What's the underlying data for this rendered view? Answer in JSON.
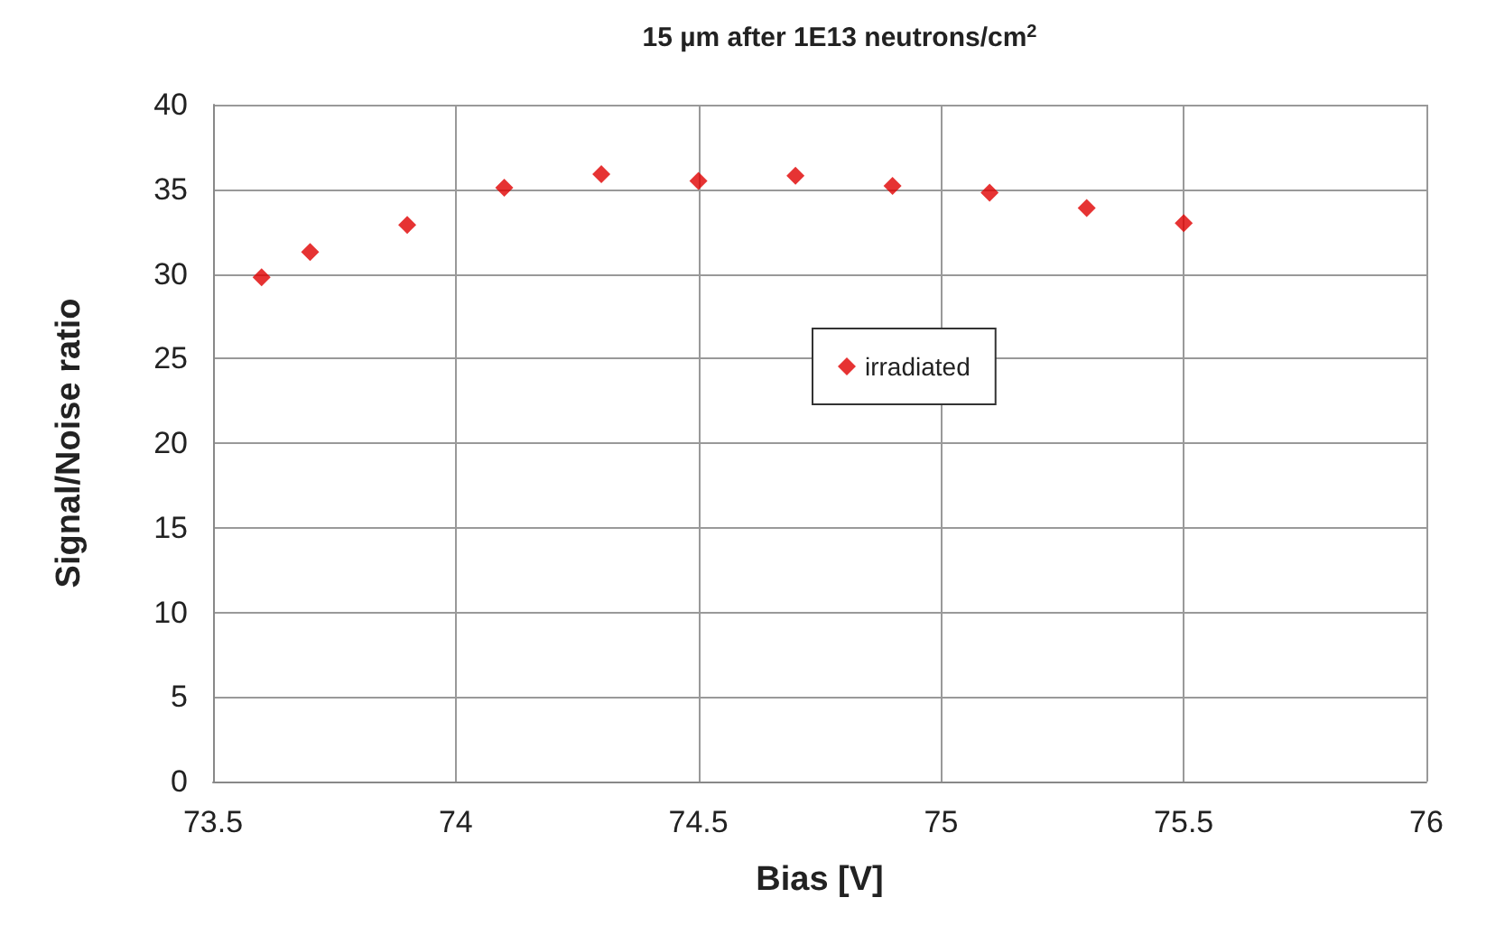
{
  "chart_data": {
    "type": "scatter",
    "title": "15 µm after 1E13 neutrons/cm$^{2}$",
    "xlabel": "Bias [V]",
    "ylabel": "Signal/Noise ratio",
    "x": [
      73.6,
      73.7,
      73.9,
      74.1,
      74.3,
      74.5,
      74.7,
      74.9,
      75.1,
      75.3,
      75.5
    ],
    "series": [
      {
        "name": "irradiated",
        "color": "#e00000",
        "values": [
          29.8,
          31.3,
          32.9,
          35.1,
          35.9,
          35.5,
          35.8,
          35.2,
          34.8,
          33.9,
          33.0
        ]
      }
    ],
    "xlim": [
      73.5,
      76
    ],
    "xticks": [
      73.5,
      74,
      74.5,
      75,
      75.5,
      76
    ],
    "ylim": [
      0,
      40
    ],
    "yticks": [
      0,
      5,
      10,
      15,
      20,
      25,
      30,
      35,
      40
    ],
    "grid": true,
    "legend": "center",
    "marker": "diamond"
  }
}
